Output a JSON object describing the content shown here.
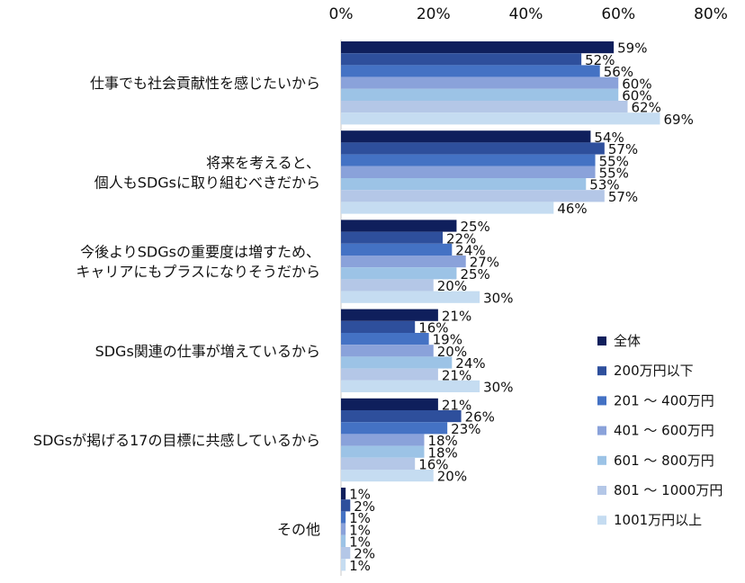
{
  "chart_data": {
    "type": "bar",
    "orientation": "horizontal",
    "xlim": [
      0,
      80
    ],
    "x_ticks": [
      "0%",
      "20%",
      "40%",
      "60%",
      "80%"
    ],
    "value_suffix": "%",
    "categories": [
      [
        "仕事でも社会貢献性を感じたいから"
      ],
      [
        "将来を考えると、",
        "個人もSDGsに取り組むべきだから"
      ],
      [
        "今後よりSDGsの重要度は増すため、",
        "キャリアにもプラスになりそうだから"
      ],
      [
        "SDGs関連の仕事が増えているから"
      ],
      [
        "SDGsが掲げる17の目標に共感しているから"
      ],
      [
        "その他"
      ]
    ],
    "series": [
      {
        "name": "全体",
        "color": "#0f1f5c",
        "values": [
          59,
          54,
          25,
          21,
          21,
          1
        ]
      },
      {
        "name": "200万円以下",
        "color": "#2e4f9c",
        "values": [
          52,
          57,
          22,
          16,
          26,
          2
        ]
      },
      {
        "name": "201 ～ 400万円",
        "color": "#4472c4",
        "values": [
          56,
          55,
          24,
          19,
          23,
          1
        ]
      },
      {
        "name": "401 ～ 600万円",
        "color": "#8aa2da",
        "values": [
          60,
          55,
          27,
          20,
          18,
          1
        ]
      },
      {
        "name": "601 ～ 800万円",
        "color": "#9cc3e6",
        "values": [
          60,
          53,
          25,
          24,
          18,
          1
        ]
      },
      {
        "name": "801 ～ 1000万円",
        "color": "#b4c7e7",
        "values": [
          62,
          57,
          20,
          21,
          16,
          2
        ]
      },
      {
        "name": "1001万円以上",
        "color": "#c5dcf1",
        "values": [
          69,
          46,
          30,
          30,
          20,
          1
        ]
      }
    ],
    "legend_position": "right",
    "grid": false
  }
}
